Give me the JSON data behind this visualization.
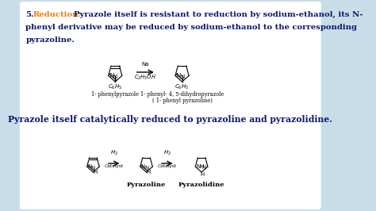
{
  "bg_color": "#c8dde8",
  "white_box_color": "#ffffff",
  "title_color": "#e8820a",
  "text_color": "#0a1a6e",
  "font_size_body": 7.2,
  "font_size_label": 5.2,
  "font_size_struct_label": 4.8,
  "font_size_catalytic": 7.8,
  "line1": "Pyrazole itself is resistant to reduction by sodium-ethanol, its N-",
  "line2": "phenyl derivative may be reduced by sodium-ethanol to the corresponding",
  "line3": "pyrazoline.",
  "catalytic": "Pyrazole itself catalytically reduced to pyrazoline and pyrazolidine."
}
